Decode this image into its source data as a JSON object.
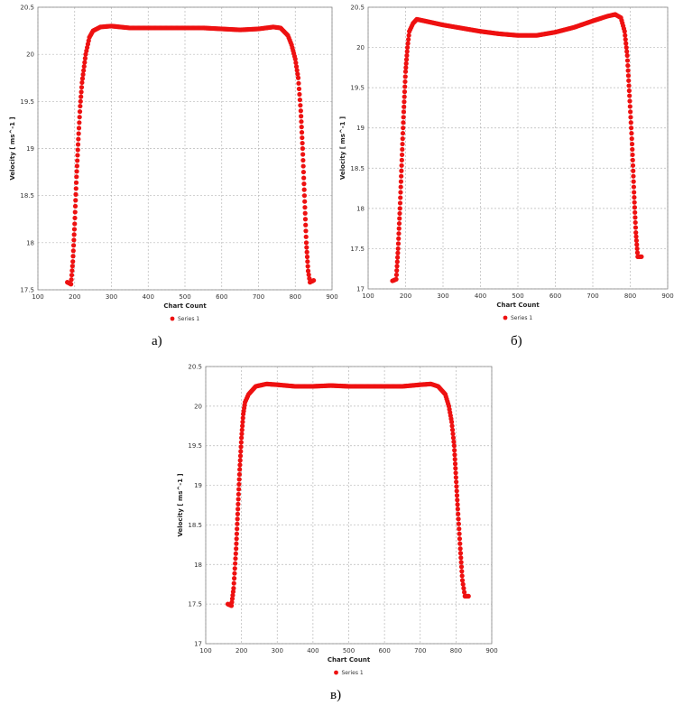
{
  "colors": {
    "series": "#ee1111",
    "grid": "#b8b8b8",
    "frame": "#888888"
  },
  "chart_data": [
    {
      "id": "a",
      "type": "scatter",
      "caption": "а)",
      "xlabel": "Chart Count",
      "ylabel": "Velocity [ ms^-1 ]",
      "xlim": [
        100,
        900
      ],
      "ylim": [
        17.5,
        20.5
      ],
      "xticks": [
        100,
        200,
        300,
        400,
        500,
        600,
        700,
        800,
        900
      ],
      "yticks": [
        17.5,
        18,
        18.5,
        19,
        19.5,
        20,
        20.5
      ],
      "grid": true,
      "legend": {
        "placement": "bottom",
        "label": "Series 1"
      },
      "profile": [
        [
          180,
          17.58
        ],
        [
          190,
          17.56
        ],
        [
          195,
          17.8
        ],
        [
          200,
          18.2
        ],
        [
          205,
          18.7
        ],
        [
          210,
          19.1
        ],
        [
          215,
          19.45
        ],
        [
          220,
          19.7
        ],
        [
          230,
          20.0
        ],
        [
          240,
          20.18
        ],
        [
          250,
          20.25
        ],
        [
          270,
          20.29
        ],
        [
          300,
          20.3
        ],
        [
          350,
          20.28
        ],
        [
          400,
          20.28
        ],
        [
          450,
          20.28
        ],
        [
          500,
          20.28
        ],
        [
          550,
          20.28
        ],
        [
          600,
          20.27
        ],
        [
          650,
          20.26
        ],
        [
          700,
          20.27
        ],
        [
          740,
          20.29
        ],
        [
          760,
          20.28
        ],
        [
          780,
          20.2
        ],
        [
          790,
          20.1
        ],
        [
          800,
          19.95
        ],
        [
          808,
          19.75
        ],
        [
          815,
          19.4
        ],
        [
          820,
          19.0
        ],
        [
          825,
          18.5
        ],
        [
          830,
          18.0
        ],
        [
          835,
          17.7
        ],
        [
          840,
          17.58
        ],
        [
          850,
          17.6
        ]
      ]
    },
    {
      "id": "b",
      "type": "scatter",
      "caption": "б)",
      "xlabel": "Chart Count",
      "ylabel": "Velocity [ ms^-1 ]",
      "xlim": [
        100,
        900
      ],
      "ylim": [
        17,
        20.5
      ],
      "xticks": [
        100,
        200,
        300,
        400,
        500,
        600,
        700,
        800,
        900
      ],
      "yticks": [
        17,
        17.5,
        18,
        18.5,
        19,
        19.5,
        20,
        20.5
      ],
      "grid": true,
      "legend": {
        "placement": "bottom",
        "label": "Series 1"
      },
      "profile": [
        [
          165,
          17.1
        ],
        [
          175,
          17.12
        ],
        [
          180,
          17.5
        ],
        [
          185,
          18.0
        ],
        [
          190,
          18.6
        ],
        [
          195,
          19.2
        ],
        [
          200,
          19.7
        ],
        [
          205,
          20.0
        ],
        [
          210,
          20.2
        ],
        [
          220,
          20.3
        ],
        [
          230,
          20.35
        ],
        [
          250,
          20.33
        ],
        [
          300,
          20.28
        ],
        [
          350,
          20.24
        ],
        [
          400,
          20.2
        ],
        [
          450,
          20.17
        ],
        [
          500,
          20.15
        ],
        [
          550,
          20.15
        ],
        [
          600,
          20.19
        ],
        [
          650,
          20.25
        ],
        [
          700,
          20.33
        ],
        [
          740,
          20.39
        ],
        [
          760,
          20.41
        ],
        [
          775,
          20.37
        ],
        [
          785,
          20.2
        ],
        [
          792,
          19.9
        ],
        [
          798,
          19.4
        ],
        [
          805,
          18.8
        ],
        [
          810,
          18.2
        ],
        [
          815,
          17.7
        ],
        [
          820,
          17.4
        ],
        [
          830,
          17.4
        ]
      ]
    },
    {
      "id": "v",
      "type": "scatter",
      "caption": "в)",
      "xlabel": "Chart Count",
      "ylabel": "Velocity [ ms^-1 ]",
      "xlim": [
        100,
        900
      ],
      "ylim": [
        17,
        20.5
      ],
      "xticks": [
        100,
        200,
        300,
        400,
        500,
        600,
        700,
        800,
        900
      ],
      "yticks": [
        17,
        17.5,
        18,
        18.5,
        19,
        19.5,
        20,
        20.5
      ],
      "grid": true,
      "legend": {
        "placement": "bottom",
        "label": "Series 1"
      },
      "profile": [
        [
          162,
          17.5
        ],
        [
          172,
          17.48
        ],
        [
          178,
          17.7
        ],
        [
          185,
          18.2
        ],
        [
          190,
          18.7
        ],
        [
          195,
          19.2
        ],
        [
          200,
          19.6
        ],
        [
          205,
          19.9
        ],
        [
          210,
          20.05
        ],
        [
          220,
          20.15
        ],
        [
          240,
          20.25
        ],
        [
          270,
          20.28
        ],
        [
          300,
          20.27
        ],
        [
          350,
          20.25
        ],
        [
          400,
          20.25
        ],
        [
          450,
          20.26
        ],
        [
          500,
          20.25
        ],
        [
          550,
          20.25
        ],
        [
          600,
          20.25
        ],
        [
          650,
          20.25
        ],
        [
          700,
          20.27
        ],
        [
          730,
          20.28
        ],
        [
          750,
          20.25
        ],
        [
          770,
          20.15
        ],
        [
          780,
          20.0
        ],
        [
          788,
          19.8
        ],
        [
          795,
          19.5
        ],
        [
          800,
          19.1
        ],
        [
          805,
          18.7
        ],
        [
          812,
          18.2
        ],
        [
          818,
          17.8
        ],
        [
          825,
          17.6
        ],
        [
          835,
          17.6
        ]
      ]
    }
  ]
}
